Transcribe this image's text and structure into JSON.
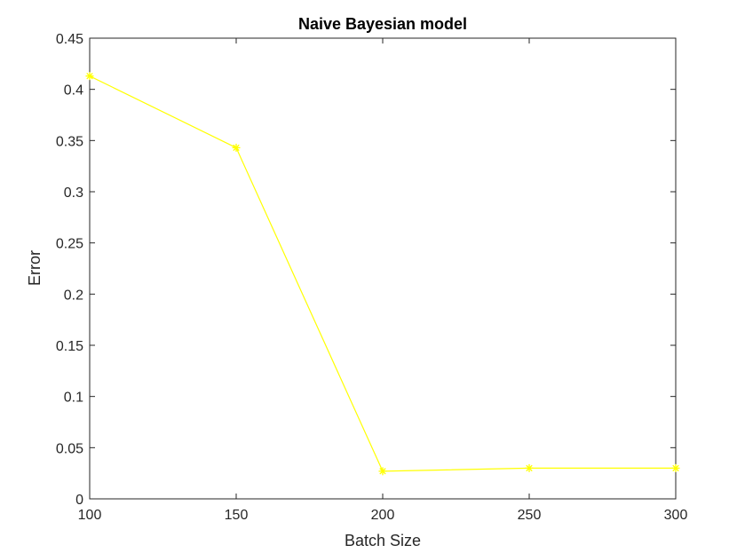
{
  "chart_data": {
    "type": "line",
    "title": "Naive Bayesian model",
    "xlabel": "Batch Size",
    "ylabel": "Error",
    "xlim": [
      100,
      300
    ],
    "ylim": [
      0,
      0.45
    ],
    "x_ticks": [
      "100",
      "150",
      "200",
      "250",
      "300"
    ],
    "y_ticks": [
      "0",
      "0.05",
      "0.1",
      "0.15",
      "0.2",
      "0.25",
      "0.3",
      "0.35",
      "0.4",
      "0.45"
    ],
    "grid": false,
    "series": [
      {
        "x": [
          100,
          150,
          200,
          250,
          300
        ],
        "values": [
          0.413,
          0.343,
          0.027,
          0.03,
          0.03
        ],
        "color": "#ffff00",
        "marker": "asterisk"
      }
    ]
  }
}
